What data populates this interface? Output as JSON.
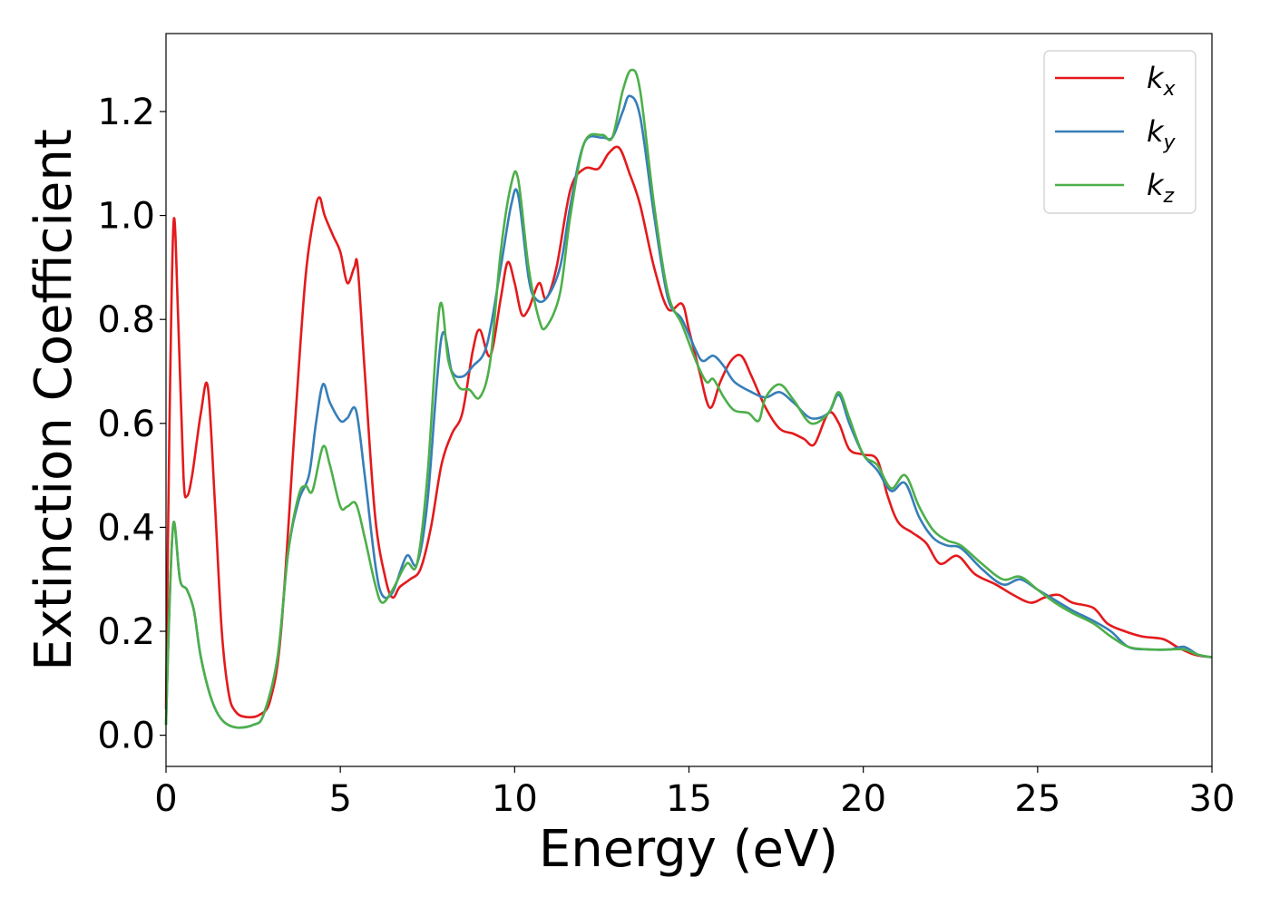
{
  "chart_data": {
    "type": "line",
    "title": "",
    "xlabel": "Energy (eV)",
    "ylabel": "Extinction Coefficient",
    "xlim": [
      0,
      30
    ],
    "ylim": [
      -0.06,
      1.35
    ],
    "xticks": [
      "0",
      "5",
      "10",
      "15",
      "20",
      "25",
      "30"
    ],
    "yticks": [
      "0.0",
      "0.2",
      "0.4",
      "0.6",
      "0.8",
      "1.0",
      "1.2"
    ],
    "legend_position": "top-right",
    "grid": false,
    "series": [
      {
        "name": "k",
        "subscript": "x",
        "color": "#e41a1c",
        "points": [
          [
            0,
            0.05
          ],
          [
            0.1,
            0.6
          ],
          [
            0.22,
            0.99
          ],
          [
            0.35,
            0.8
          ],
          [
            0.5,
            0.5
          ],
          [
            0.6,
            0.46
          ],
          [
            0.75,
            0.5
          ],
          [
            1.0,
            0.62
          ],
          [
            1.2,
            0.67
          ],
          [
            1.4,
            0.45
          ],
          [
            1.6,
            0.2
          ],
          [
            1.8,
            0.08
          ],
          [
            2.0,
            0.045
          ],
          [
            2.3,
            0.035
          ],
          [
            2.7,
            0.04
          ],
          [
            3.0,
            0.07
          ],
          [
            3.3,
            0.2
          ],
          [
            3.7,
            0.6
          ],
          [
            4.0,
            0.88
          ],
          [
            4.25,
            1.0
          ],
          [
            4.4,
            1.035
          ],
          [
            4.55,
            1.0
          ],
          [
            4.8,
            0.96
          ],
          [
            5.0,
            0.93
          ],
          [
            5.2,
            0.87
          ],
          [
            5.4,
            0.9
          ],
          [
            5.5,
            0.9
          ],
          [
            5.7,
            0.7
          ],
          [
            6.0,
            0.42
          ],
          [
            6.3,
            0.3
          ],
          [
            6.5,
            0.265
          ],
          [
            6.7,
            0.285
          ],
          [
            7.0,
            0.3
          ],
          [
            7.3,
            0.32
          ],
          [
            7.6,
            0.4
          ],
          [
            7.9,
            0.52
          ],
          [
            8.2,
            0.58
          ],
          [
            8.5,
            0.62
          ],
          [
            8.8,
            0.74
          ],
          [
            9.0,
            0.78
          ],
          [
            9.3,
            0.73
          ],
          [
            9.6,
            0.84
          ],
          [
            9.8,
            0.91
          ],
          [
            10.0,
            0.87
          ],
          [
            10.2,
            0.81
          ],
          [
            10.4,
            0.82
          ],
          [
            10.7,
            0.87
          ],
          [
            10.9,
            0.84
          ],
          [
            11.2,
            0.9
          ],
          [
            11.6,
            1.05
          ],
          [
            12.0,
            1.09
          ],
          [
            12.4,
            1.09
          ],
          [
            12.7,
            1.12
          ],
          [
            13.0,
            1.13
          ],
          [
            13.3,
            1.08
          ],
          [
            13.6,
            1.02
          ],
          [
            14.0,
            0.9
          ],
          [
            14.4,
            0.82
          ],
          [
            14.8,
            0.83
          ],
          [
            15.0,
            0.78
          ],
          [
            15.3,
            0.7
          ],
          [
            15.6,
            0.63
          ],
          [
            15.9,
            0.68
          ],
          [
            16.2,
            0.72
          ],
          [
            16.5,
            0.73
          ],
          [
            16.8,
            0.69
          ],
          [
            17.2,
            0.63
          ],
          [
            17.6,
            0.59
          ],
          [
            18.0,
            0.58
          ],
          [
            18.3,
            0.57
          ],
          [
            18.6,
            0.56
          ],
          [
            19.0,
            0.62
          ],
          [
            19.3,
            0.6
          ],
          [
            19.6,
            0.55
          ],
          [
            20.0,
            0.54
          ],
          [
            20.4,
            0.53
          ],
          [
            20.7,
            0.46
          ],
          [
            21.0,
            0.41
          ],
          [
            21.4,
            0.39
          ],
          [
            21.8,
            0.37
          ],
          [
            22.2,
            0.33
          ],
          [
            22.7,
            0.345
          ],
          [
            23.2,
            0.31
          ],
          [
            23.8,
            0.29
          ],
          [
            24.3,
            0.27
          ],
          [
            24.8,
            0.255
          ],
          [
            25.2,
            0.265
          ],
          [
            25.6,
            0.27
          ],
          [
            26.0,
            0.255
          ],
          [
            26.6,
            0.245
          ],
          [
            27.0,
            0.215
          ],
          [
            27.5,
            0.2
          ],
          [
            28.0,
            0.19
          ],
          [
            28.6,
            0.185
          ],
          [
            29.0,
            0.17
          ],
          [
            29.5,
            0.155
          ],
          [
            30.0,
            0.15
          ]
        ]
      },
      {
        "name": "k",
        "subscript": "y",
        "color": "#377eb8",
        "points": [
          [
            0,
            0.02
          ],
          [
            0.1,
            0.25
          ],
          [
            0.22,
            0.41
          ],
          [
            0.4,
            0.3
          ],
          [
            0.6,
            0.28
          ],
          [
            0.8,
            0.24
          ],
          [
            1.0,
            0.15
          ],
          [
            1.3,
            0.07
          ],
          [
            1.6,
            0.03
          ],
          [
            2.0,
            0.015
          ],
          [
            2.5,
            0.02
          ],
          [
            2.8,
            0.04
          ],
          [
            3.2,
            0.15
          ],
          [
            3.5,
            0.35
          ],
          [
            3.8,
            0.45
          ],
          [
            4.1,
            0.5
          ],
          [
            4.3,
            0.6
          ],
          [
            4.5,
            0.675
          ],
          [
            4.7,
            0.64
          ],
          [
            5.0,
            0.605
          ],
          [
            5.2,
            0.61
          ],
          [
            5.45,
            0.625
          ],
          [
            5.7,
            0.5
          ],
          [
            6.0,
            0.33
          ],
          [
            6.2,
            0.27
          ],
          [
            6.5,
            0.275
          ],
          [
            6.9,
            0.345
          ],
          [
            7.2,
            0.33
          ],
          [
            7.5,
            0.45
          ],
          [
            7.9,
            0.765
          ],
          [
            8.2,
            0.7
          ],
          [
            8.5,
            0.69
          ],
          [
            8.8,
            0.71
          ],
          [
            9.2,
            0.75
          ],
          [
            9.6,
            0.9
          ],
          [
            9.9,
            1.02
          ],
          [
            10.1,
            1.04
          ],
          [
            10.4,
            0.88
          ],
          [
            10.6,
            0.84
          ],
          [
            10.9,
            0.84
          ],
          [
            11.3,
            0.9
          ],
          [
            11.6,
            1.02
          ],
          [
            12.0,
            1.14
          ],
          [
            12.5,
            1.15
          ],
          [
            12.8,
            1.15
          ],
          [
            13.1,
            1.2
          ],
          [
            13.3,
            1.23
          ],
          [
            13.6,
            1.19
          ],
          [
            14.0,
            1.0
          ],
          [
            14.4,
            0.84
          ],
          [
            14.8,
            0.8
          ],
          [
            15.2,
            0.74
          ],
          [
            15.4,
            0.72
          ],
          [
            15.7,
            0.73
          ],
          [
            16.0,
            0.71
          ],
          [
            16.3,
            0.68
          ],
          [
            16.8,
            0.66
          ],
          [
            17.2,
            0.65
          ],
          [
            17.6,
            0.66
          ],
          [
            18.0,
            0.64
          ],
          [
            18.5,
            0.61
          ],
          [
            19.0,
            0.62
          ],
          [
            19.3,
            0.655
          ],
          [
            19.6,
            0.6
          ],
          [
            20.0,
            0.54
          ],
          [
            20.4,
            0.51
          ],
          [
            20.8,
            0.47
          ],
          [
            21.2,
            0.485
          ],
          [
            21.6,
            0.42
          ],
          [
            22.0,
            0.38
          ],
          [
            22.4,
            0.365
          ],
          [
            22.8,
            0.36
          ],
          [
            23.4,
            0.32
          ],
          [
            24.0,
            0.29
          ],
          [
            24.5,
            0.3
          ],
          [
            25.0,
            0.28
          ],
          [
            25.5,
            0.26
          ],
          [
            26.0,
            0.24
          ],
          [
            26.6,
            0.22
          ],
          [
            27.1,
            0.2
          ],
          [
            27.6,
            0.17
          ],
          [
            28.2,
            0.165
          ],
          [
            28.8,
            0.165
          ],
          [
            29.2,
            0.17
          ],
          [
            29.6,
            0.155
          ],
          [
            30.0,
            0.15
          ]
        ]
      },
      {
        "name": "k",
        "subscript": "z",
        "color": "#4daf4a",
        "points": [
          [
            0,
            0.02
          ],
          [
            0.1,
            0.25
          ],
          [
            0.22,
            0.41
          ],
          [
            0.4,
            0.3
          ],
          [
            0.6,
            0.28
          ],
          [
            0.8,
            0.24
          ],
          [
            1.0,
            0.15
          ],
          [
            1.3,
            0.07
          ],
          [
            1.6,
            0.03
          ],
          [
            2.0,
            0.015
          ],
          [
            2.5,
            0.02
          ],
          [
            2.8,
            0.04
          ],
          [
            3.2,
            0.15
          ],
          [
            3.5,
            0.35
          ],
          [
            3.8,
            0.46
          ],
          [
            4.0,
            0.48
          ],
          [
            4.2,
            0.47
          ],
          [
            4.5,
            0.555
          ],
          [
            4.7,
            0.52
          ],
          [
            5.0,
            0.44
          ],
          [
            5.2,
            0.44
          ],
          [
            5.45,
            0.445
          ],
          [
            5.7,
            0.38
          ],
          [
            6.0,
            0.29
          ],
          [
            6.2,
            0.255
          ],
          [
            6.5,
            0.28
          ],
          [
            6.9,
            0.33
          ],
          [
            7.2,
            0.33
          ],
          [
            7.5,
            0.5
          ],
          [
            7.85,
            0.825
          ],
          [
            8.1,
            0.72
          ],
          [
            8.4,
            0.67
          ],
          [
            8.7,
            0.665
          ],
          [
            9.0,
            0.65
          ],
          [
            9.3,
            0.72
          ],
          [
            9.6,
            0.93
          ],
          [
            9.9,
            1.06
          ],
          [
            10.1,
            1.07
          ],
          [
            10.4,
            0.9
          ],
          [
            10.7,
            0.8
          ],
          [
            10.9,
            0.785
          ],
          [
            11.3,
            0.85
          ],
          [
            11.6,
            1.0
          ],
          [
            12.0,
            1.14
          ],
          [
            12.5,
            1.155
          ],
          [
            12.8,
            1.15
          ],
          [
            13.1,
            1.24
          ],
          [
            13.35,
            1.28
          ],
          [
            13.6,
            1.24
          ],
          [
            14.0,
            1.02
          ],
          [
            14.4,
            0.85
          ],
          [
            14.8,
            0.79
          ],
          [
            15.2,
            0.72
          ],
          [
            15.5,
            0.68
          ],
          [
            15.7,
            0.685
          ],
          [
            16.0,
            0.65
          ],
          [
            16.3,
            0.625
          ],
          [
            16.7,
            0.62
          ],
          [
            17.0,
            0.605
          ],
          [
            17.2,
            0.65
          ],
          [
            17.6,
            0.675
          ],
          [
            18.0,
            0.645
          ],
          [
            18.5,
            0.6
          ],
          [
            19.0,
            0.62
          ],
          [
            19.3,
            0.66
          ],
          [
            19.6,
            0.61
          ],
          [
            20.0,
            0.54
          ],
          [
            20.4,
            0.52
          ],
          [
            20.8,
            0.475
          ],
          [
            21.2,
            0.5
          ],
          [
            21.6,
            0.44
          ],
          [
            22.0,
            0.395
          ],
          [
            22.4,
            0.375
          ],
          [
            22.8,
            0.365
          ],
          [
            23.4,
            0.33
          ],
          [
            24.0,
            0.3
          ],
          [
            24.5,
            0.305
          ],
          [
            25.0,
            0.28
          ],
          [
            25.5,
            0.255
          ],
          [
            26.0,
            0.235
          ],
          [
            26.6,
            0.215
          ],
          [
            27.1,
            0.19
          ],
          [
            27.6,
            0.17
          ],
          [
            28.2,
            0.165
          ],
          [
            28.8,
            0.165
          ],
          [
            29.2,
            0.165
          ],
          [
            29.6,
            0.155
          ],
          [
            30.0,
            0.15
          ]
        ]
      }
    ]
  }
}
